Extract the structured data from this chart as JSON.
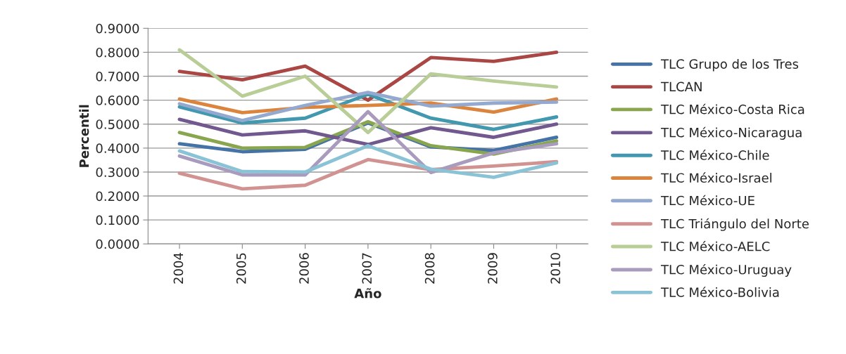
{
  "chart_data": {
    "type": "line",
    "xlabel": "Año",
    "ylabel": "Percentil",
    "categories": [
      "2004",
      "2005",
      "2006",
      "2007",
      "2008",
      "2009",
      "2010"
    ],
    "ylim": [
      0,
      0.9
    ],
    "yticks": [
      {
        "value": 0,
        "label": "0.0000"
      },
      {
        "value": 0.1,
        "label": "0.1000"
      },
      {
        "value": 0.2,
        "label": "0.2000"
      },
      {
        "value": 0.3,
        "label": "0.3000"
      },
      {
        "value": 0.4,
        "label": "0.4000"
      },
      {
        "value": 0.5,
        "label": "0.5000"
      },
      {
        "value": 0.6,
        "label": "0.6000"
      },
      {
        "value": 0.7,
        "label": "0.7000"
      },
      {
        "value": 0.8,
        "label": "0.8000"
      },
      {
        "value": 0.9,
        "label": "0.9000"
      }
    ],
    "grid": "y",
    "legend": "right",
    "marker": "none",
    "line_style": "solid",
    "series": [
      {
        "name": "TLC Grupo de los Tres",
        "color": "#4572a7",
        "values": [
          0.418,
          0.385,
          0.395,
          0.505,
          0.405,
          0.39,
          0.445
        ]
      },
      {
        "name": "TLCAN",
        "color": "#aa4643",
        "values": [
          0.72,
          0.685,
          0.742,
          0.6,
          0.778,
          0.762,
          0.8
        ]
      },
      {
        "name": "TLC México-Costa Rica",
        "color": "#89a54e",
        "values": [
          0.465,
          0.4,
          0.403,
          0.51,
          0.41,
          0.375,
          0.43
        ]
      },
      {
        "name": "TLC México-Nicaragua",
        "color": "#71588f",
        "values": [
          0.52,
          0.455,
          0.472,
          0.415,
          0.485,
          0.445,
          0.5
        ]
      },
      {
        "name": "TLC México-Chile",
        "color": "#4198af",
        "values": [
          0.572,
          0.505,
          0.525,
          0.625,
          0.525,
          0.478,
          0.53
        ]
      },
      {
        "name": "TLC México-Israel",
        "color": "#db843d",
        "values": [
          0.605,
          0.548,
          0.57,
          0.578,
          0.588,
          0.55,
          0.605
        ]
      },
      {
        "name": "TLC México-UE",
        "color": "#93a9cf",
        "values": [
          0.585,
          0.515,
          0.578,
          0.632,
          0.575,
          0.588,
          0.592
        ]
      },
      {
        "name": "TLC Triángulo del Norte",
        "color": "#d19392",
        "values": [
          0.295,
          0.23,
          0.245,
          0.352,
          0.31,
          0.325,
          0.343
        ]
      },
      {
        "name": "TLC México-AELC",
        "color": "#b9cd96",
        "values": [
          0.81,
          0.617,
          0.7,
          0.465,
          0.71,
          0.68,
          0.655
        ]
      },
      {
        "name": "TLC México-Uruguay",
        "color": "#a99bbd",
        "values": [
          0.367,
          0.288,
          0.288,
          0.552,
          0.298,
          0.38,
          0.418
        ]
      },
      {
        "name": "TLC México-Bolivia",
        "color": "#8bc3d6",
        "values": [
          0.388,
          0.302,
          0.3,
          0.41,
          0.312,
          0.278,
          0.338
        ]
      }
    ]
  }
}
